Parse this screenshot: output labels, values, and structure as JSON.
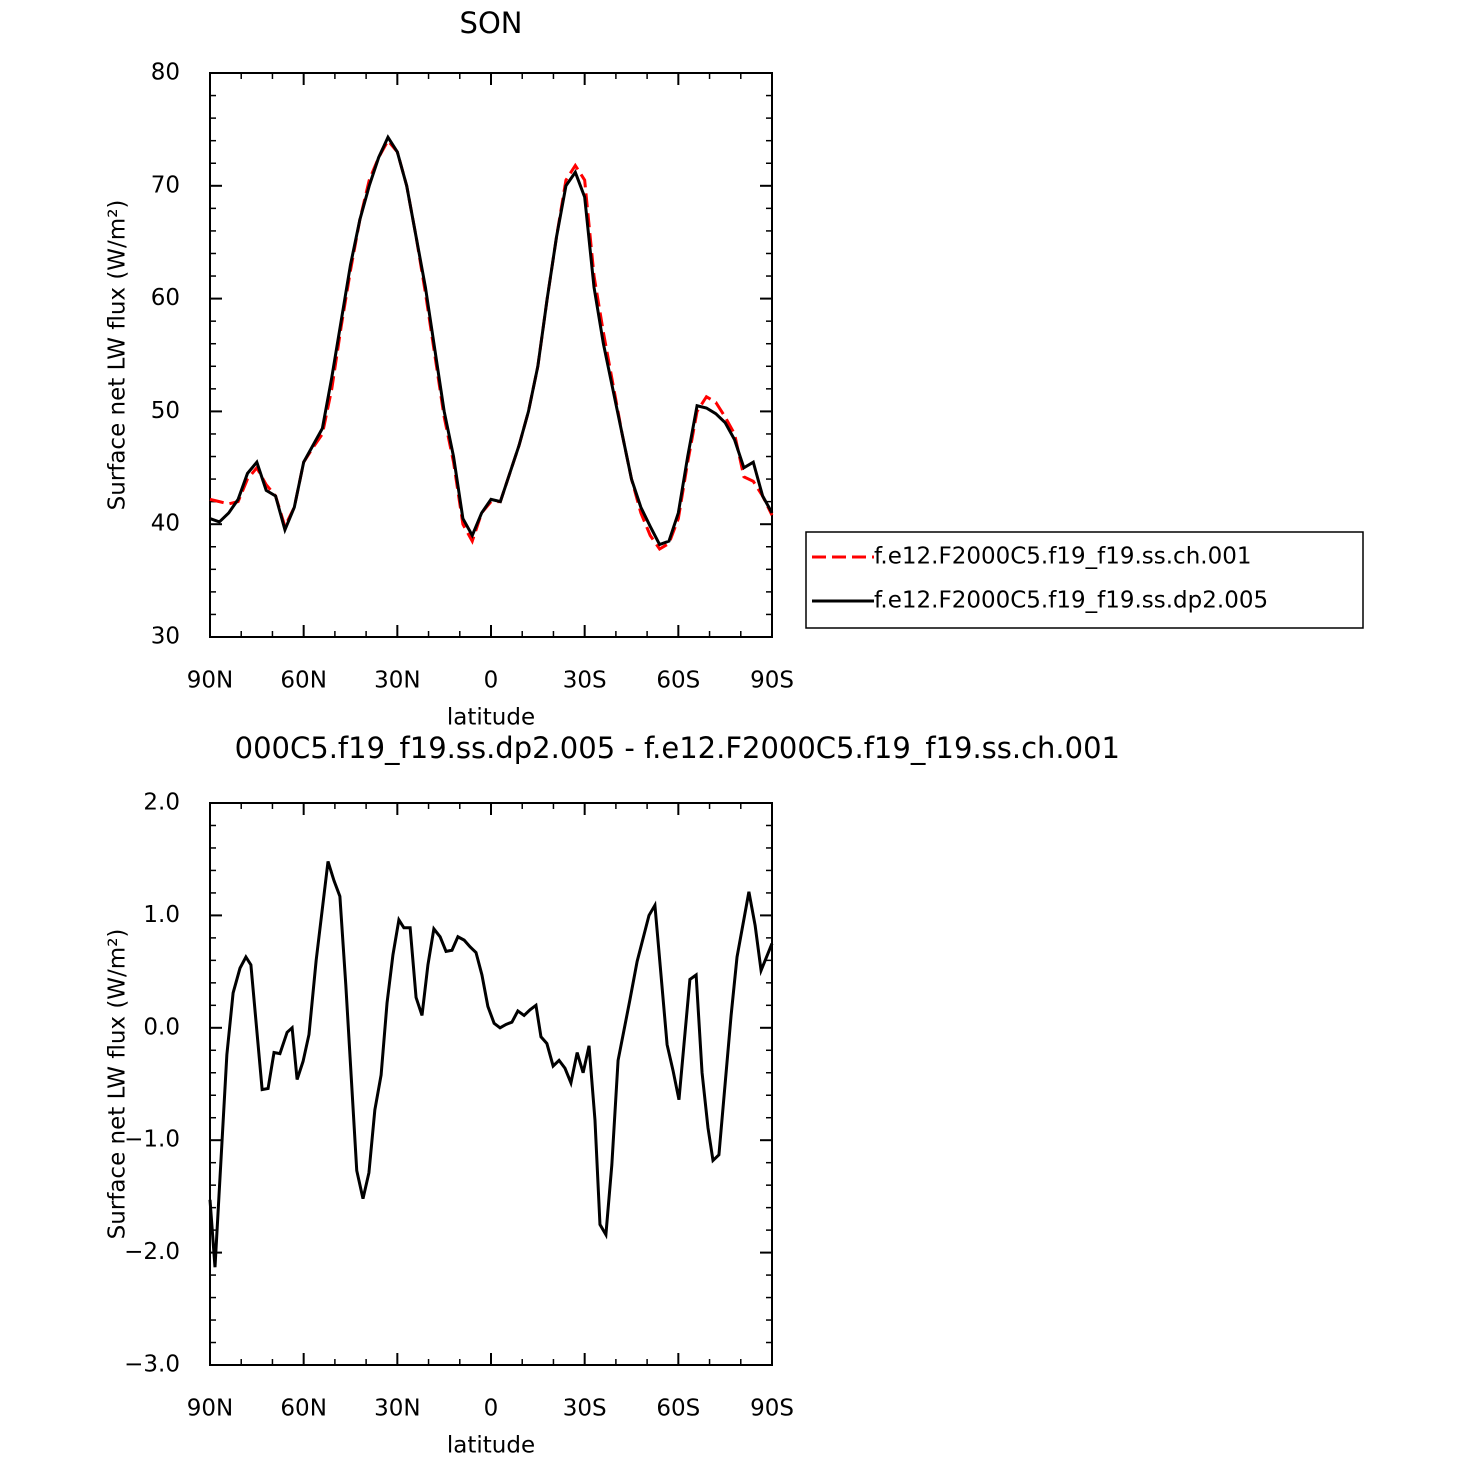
{
  "chart_data": [
    {
      "type": "line",
      "title": "SON",
      "xlabel": "latitude",
      "ylabel": "Surface net LW flux (W/m²)",
      "xlim": [
        90,
        -90
      ],
      "ylim": [
        30,
        80
      ],
      "xticks": [
        {
          "value": 90,
          "label": "90N"
        },
        {
          "value": 60,
          "label": "60N"
        },
        {
          "value": 30,
          "label": "30N"
        },
        0,
        {
          "value": -30,
          "label": "30S"
        },
        {
          "value": -60,
          "label": "60S"
        },
        {
          "value": -90,
          "label": "90S"
        }
      ],
      "yticks": [
        30,
        40,
        50,
        60,
        70,
        80
      ],
      "legend": "right",
      "x": [
        90,
        87,
        84,
        81,
        78,
        75,
        72,
        69,
        66,
        63,
        60,
        57,
        54,
        51,
        48,
        45,
        42,
        39,
        36,
        33,
        30,
        27,
        24,
        21,
        18,
        15,
        12,
        9,
        6,
        3,
        0,
        -3,
        -6,
        -9,
        -12,
        -15,
        -18,
        -21,
        -24,
        -27,
        -30,
        -33,
        -36,
        -39,
        -42,
        -45,
        -48,
        -51,
        -54,
        -57,
        -60,
        -63,
        -66,
        -69,
        -72,
        -75,
        -78,
        -81,
        -84,
        -87,
        -90
      ],
      "series": [
        {
          "name": "f.e12.F2000C5.f19_f19.ss.ch.001",
          "color": "#ff0000",
          "line_style": "dashed",
          "values": [
            42.2,
            42,
            41.8,
            42,
            44,
            45,
            43.5,
            42.5,
            39.8,
            41.5,
            45.5,
            46.8,
            48,
            52,
            57.5,
            62.5,
            67,
            70.5,
            72.5,
            74,
            73,
            70,
            65.5,
            60.5,
            55,
            49.5,
            45.5,
            40,
            38.5,
            41,
            42,
            42,
            44.5,
            47,
            50,
            54,
            60,
            65.5,
            70.5,
            71.8,
            70.5,
            62,
            57,
            52.5,
            48,
            44,
            41,
            39,
            37.8,
            38.3,
            40.5,
            45.5,
            50,
            51.3,
            50.8,
            49.5,
            48,
            44.2,
            43.8,
            42.5,
            40.8
          ]
        },
        {
          "name": "f.e12.F2000C5.f19_f19.ss.dp2.005",
          "color": "#000000",
          "line_style": "solid",
          "values": [
            40.5,
            40.2,
            41,
            42.2,
            44.5,
            45.5,
            43,
            42.5,
            39.5,
            41.5,
            45.5,
            47,
            48.5,
            53,
            58,
            63,
            67,
            70,
            72.5,
            74.3,
            73,
            70,
            65.5,
            61,
            55.5,
            50,
            46,
            40.5,
            39,
            41,
            42.2,
            42,
            44.5,
            47,
            50,
            54,
            60,
            65.5,
            70,
            71.2,
            69,
            61,
            56,
            52,
            48,
            44,
            41.5,
            39.8,
            38.2,
            38.5,
            41,
            46,
            50.5,
            50.3,
            49.8,
            49,
            47.5,
            45,
            45.5,
            42.5,
            41
          ]
        }
      ]
    },
    {
      "type": "line",
      "title": "000C5.f19_f19.ss.dp2.005 - f.e12.F2000C5.f19_f19.ss.ch.001",
      "xlabel": "latitude",
      "ylabel": "Surface net LW flux (W/m²)",
      "xlim": [
        90,
        -90
      ],
      "ylim": [
        -3,
        2
      ],
      "xticks": [
        {
          "value": 90,
          "label": "90N"
        },
        {
          "value": 60,
          "label": "60N"
        },
        {
          "value": 30,
          "label": "30N"
        },
        0,
        {
          "value": -30,
          "label": "30S"
        },
        {
          "value": -60,
          "label": "60S"
        },
        {
          "value": -90,
          "label": "90S"
        }
      ],
      "yticks": [
        {
          "value": -3,
          "label": "−3.0"
        },
        {
          "value": -2,
          "label": "−2.0"
        },
        {
          "value": -1,
          "label": "−1.0"
        },
        {
          "value": 0,
          "label": "0.0"
        },
        {
          "value": 1,
          "label": "1.0"
        },
        {
          "value": 2,
          "label": "2.0"
        }
      ],
      "x": [
        90,
        88.4,
        84.6,
        82.6,
        80.4,
        78.5,
        76.9,
        73.3,
        71.4,
        69.5,
        67.6,
        65.3,
        63.7,
        62.1,
        60.2,
        58.3,
        56,
        52.2,
        50.3,
        48.4,
        46.5,
        43,
        41,
        39.1,
        37.2,
        35.2,
        33.3,
        31.4,
        29.5,
        27.9,
        25.9,
        24,
        22.1,
        20.2,
        18.3,
        16.3,
        14.4,
        12.5,
        10.6,
        8.6,
        6.7,
        4.8,
        2.9,
        1,
        -1,
        -2.9,
        -4.8,
        -6.7,
        -8.6,
        -10.6,
        -12.5,
        -14.4,
        -16,
        -17.9,
        -19.9,
        -21.8,
        -23.7,
        -25.6,
        -27.6,
        -29.5,
        -31.4,
        -33.3,
        -34.9,
        -36.8,
        -38.7,
        -40.7,
        -42.6,
        -44.5,
        -46.8,
        -50.6,
        -52.5,
        -56.4,
        -58.3,
        -60.2,
        -61.8,
        -63.7,
        -65.7,
        -67.6,
        -69.5,
        -71.1,
        -73,
        -76.9,
        -78.8,
        -82.6,
        -84.6,
        -86.5,
        -90
      ],
      "series": [
        {
          "color": "#000000",
          "line_style": "solid",
          "values": [
            -1.53,
            -2.13,
            -0.24,
            0.31,
            0.53,
            0.63,
            0.56,
            -0.55,
            -0.54,
            -0.22,
            -0.23,
            -0.04,
            0,
            -0.46,
            -0.3,
            -0.06,
            0.6,
            1.48,
            1.31,
            1.17,
            0.38,
            -1.27,
            -1.52,
            -1.29,
            -0.73,
            -0.42,
            0.22,
            0.65,
            0.96,
            0.89,
            0.89,
            0.27,
            0.11,
            0.56,
            0.88,
            0.81,
            0.68,
            0.69,
            0.81,
            0.78,
            0.72,
            0.67,
            0.47,
            0.19,
            0.04,
            0,
            0.03,
            0.05,
            0.15,
            0.11,
            0.16,
            0.2,
            -0.08,
            -0.14,
            -0.34,
            -0.29,
            -0.36,
            -0.49,
            -0.22,
            -0.4,
            -0.16,
            -0.82,
            -1.75,
            -1.84,
            -1.22,
            -0.29,
            -0.02,
            0.25,
            0.59,
            1,
            1.09,
            -0.15,
            -0.38,
            -0.64,
            -0.15,
            0.43,
            0.47,
            -0.4,
            -0.89,
            -1.18,
            -1.13,
            0.11,
            0.63,
            1.21,
            0.91,
            0.51,
            0.75
          ]
        }
      ]
    }
  ]
}
